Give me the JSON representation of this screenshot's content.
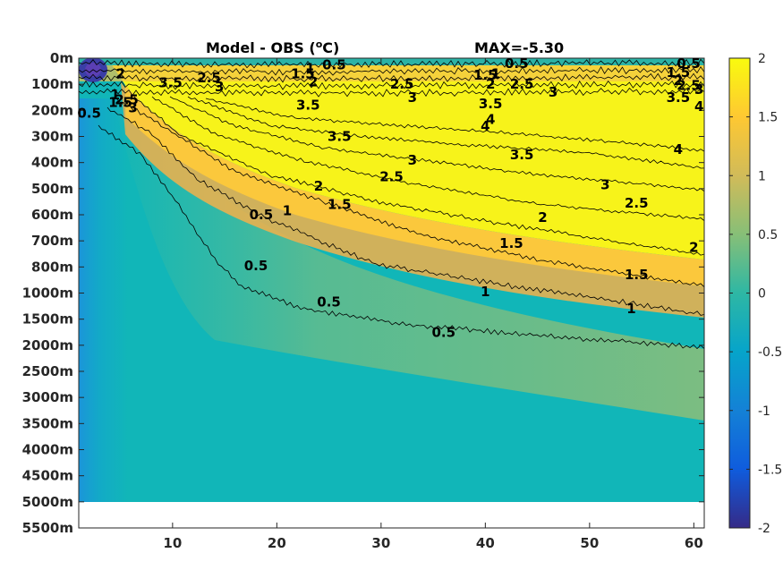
{
  "chart_data": {
    "type": "heatmap",
    "title": "Model - OBS (",
    "title_unit": "o",
    "title_suffix": "C)",
    "annotation": "MAX=-5.30",
    "xticks": [
      10,
      20,
      30,
      40,
      50,
      60
    ],
    "xlim": [
      1,
      61
    ],
    "ytick_labels": [
      "0m",
      "100m",
      "200m",
      "300m",
      "400m",
      "500m",
      "600m",
      "700m",
      "800m",
      "1000m",
      "1500m",
      "2000m",
      "2500m",
      "3000m",
      "3500m",
      "4000m",
      "4500m",
      "5000m",
      "5500m"
    ],
    "colorbar": {
      "ticks": [
        2,
        1.5,
        1,
        0.5,
        0,
        -0.5,
        -1,
        -1.5,
        -2
      ],
      "tick_labels": [
        "2",
        "1.5",
        "1",
        "0.5",
        "0",
        "-0.5",
        "-1",
        "-1.5",
        "-2"
      ],
      "colormap": "parula",
      "range": [
        -2,
        2
      ]
    },
    "contour_levels": [
      "0.5",
      "1",
      "1.5",
      "2",
      "2.5",
      "3",
      "3.5",
      "4"
    ],
    "contour_labels": [
      {
        "text": "0.5",
        "x": 25.5,
        "y": 0.25
      },
      {
        "text": "1",
        "x": 23.2,
        "y": 0.4
      },
      {
        "text": "1.5",
        "x": 22.5,
        "y": 0.6
      },
      {
        "text": "2",
        "x": 23.5,
        "y": 0.9
      },
      {
        "text": "2.5",
        "x": 13.5,
        "y": 0.75
      },
      {
        "text": "3",
        "x": 14.5,
        "y": 1.1
      },
      {
        "text": "3.5",
        "x": 9.8,
        "y": 0.95
      },
      {
        "text": "2.5",
        "x": 32,
        "y": 1.0
      },
      {
        "text": "3",
        "x": 33,
        "y": 1.5
      },
      {
        "text": "3.5",
        "x": 23,
        "y": 1.8
      },
      {
        "text": "1.5",
        "x": 40,
        "y": 0.65
      },
      {
        "text": "1",
        "x": 41,
        "y": 0.6
      },
      {
        "text": "2",
        "x": 40.5,
        "y": 1.0
      },
      {
        "text": "2.5",
        "x": 43.5,
        "y": 1.0
      },
      {
        "text": "3",
        "x": 46.5,
        "y": 1.3
      },
      {
        "text": "3.5",
        "x": 40.5,
        "y": 1.75
      },
      {
        "text": "4",
        "x": 40.5,
        "y": 2.35
      },
      {
        "text": "4",
        "x": 40,
        "y": 2.6
      },
      {
        "text": "0.5",
        "x": 43,
        "y": 0.2
      },
      {
        "text": "0.5",
        "x": 59.5,
        "y": 0.2
      },
      {
        "text": "1.5",
        "x": 58.5,
        "y": 0.55
      },
      {
        "text": "2",
        "x": 58.5,
        "y": 0.85
      },
      {
        "text": "2.5",
        "x": 59.5,
        "y": 1.05
      },
      {
        "text": "3",
        "x": 60.5,
        "y": 1.2
      },
      {
        "text": "3.5",
        "x": 58.5,
        "y": 1.5
      },
      {
        "text": "4",
        "x": 60.5,
        "y": 1.85
      },
      {
        "text": "3.5",
        "x": 26,
        "y": 3.0
      },
      {
        "text": "3",
        "x": 33,
        "y": 3.9
      },
      {
        "text": "3.5",
        "x": 43.5,
        "y": 3.7
      },
      {
        "text": "4",
        "x": 58.5,
        "y": 3.5
      },
      {
        "text": "2.5",
        "x": 31,
        "y": 4.55
      },
      {
        "text": "2",
        "x": 24,
        "y": 4.9
      },
      {
        "text": "3",
        "x": 51.5,
        "y": 4.85
      },
      {
        "text": "1.5",
        "x": 26,
        "y": 5.6
      },
      {
        "text": "1",
        "x": 21,
        "y": 5.85
      },
      {
        "text": "2.5",
        "x": 54.5,
        "y": 5.55
      },
      {
        "text": "2",
        "x": 45.5,
        "y": 6.1
      },
      {
        "text": "2",
        "x": 60,
        "y": 7.25
      },
      {
        "text": "1.5",
        "x": 42.5,
        "y": 7.1
      },
      {
        "text": "1.5",
        "x": 54.5,
        "y": 8.3
      },
      {
        "text": "1",
        "x": 40,
        "y": 8.95
      },
      {
        "text": "1",
        "x": 54,
        "y": 9.6
      },
      {
        "text": "0.5",
        "x": 25,
        "y": 9.35
      },
      {
        "text": "0.5",
        "x": 36,
        "y": 10.5
      },
      {
        "text": "0.5",
        "x": 18.5,
        "y": 6.0
      },
      {
        "text": "0.5",
        "x": 18,
        "y": 7.95
      },
      {
        "text": "1.5",
        "x": 5,
        "y": 1.7
      },
      {
        "text": "1",
        "x": 4.5,
        "y": 1.4
      },
      {
        "text": "2",
        "x": 5,
        "y": 0.6
      },
      {
        "text": "0.5",
        "x": 2,
        "y": 2.1
      },
      {
        "text": "2.5",
        "x": 5.6,
        "y": 1.6
      },
      {
        "text": "3",
        "x": 6.2,
        "y": 1.9
      }
    ]
  }
}
